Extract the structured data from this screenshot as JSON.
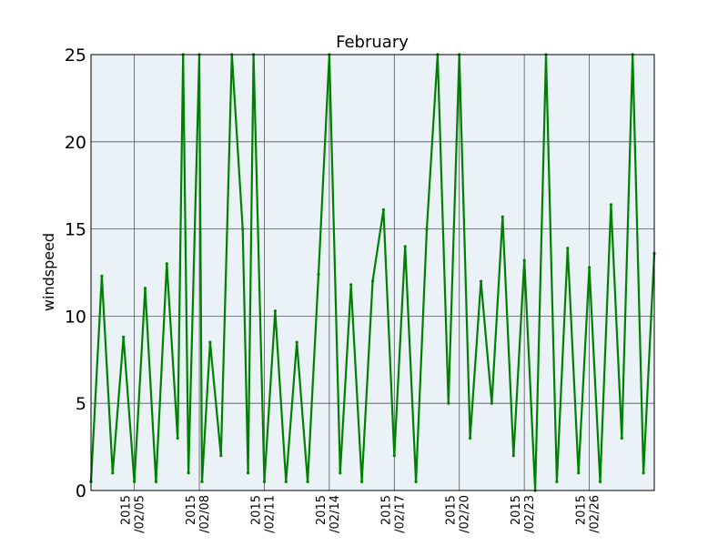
{
  "chart_data": {
    "type": "line",
    "title": "February",
    "xlabel": "",
    "ylabel": "windspeed",
    "ylim": [
      0,
      25
    ],
    "yticks": [
      0,
      5,
      10,
      15,
      20,
      25
    ],
    "xlim": [
      "2015-02-03",
      "2015-03-01"
    ],
    "xticks": [
      {
        "date": "2015-02-05",
        "line1": "2015",
        "line2": "/02/05"
      },
      {
        "date": "2015-02-08",
        "line1": "2015",
        "line2": "/02/08"
      },
      {
        "date": "2015-02-11",
        "line1": "2015",
        "line2": "/02/11"
      },
      {
        "date": "2015-02-14",
        "line1": "2015",
        "line2": "/02/14"
      },
      {
        "date": "2015-02-17",
        "line1": "2015",
        "line2": "/02/17"
      },
      {
        "date": "2015-02-20",
        "line1": "2015",
        "line2": "/02/20"
      },
      {
        "date": "2015-02-23",
        "line1": "2015",
        "line2": "/02/23"
      },
      {
        "date": "2015-02-26",
        "line1": "2015",
        "line2": "/02/26"
      }
    ],
    "grid": true,
    "colors": {
      "line": "#008000",
      "plot_bg": "#eaf2f8",
      "grid": "#555555"
    },
    "series": [
      {
        "x": [
          "2015-02-03",
          "2015-02-03 12:00",
          "2015-02-04",
          "2015-02-04 12:00",
          "2015-02-05",
          "2015-02-05 12:00",
          "2015-02-06",
          "2015-02-06 12:00",
          "2015-02-07",
          "2015-02-07 06:00",
          "2015-02-07 12:00",
          "2015-02-08",
          "2015-02-08 03:00",
          "2015-02-08 12:00",
          "2015-02-09",
          "2015-02-09 12:00",
          "2015-02-10",
          "2015-02-10 06:00",
          "2015-02-10 12:00",
          "2015-02-11",
          "2015-02-11 12:00",
          "2015-02-12",
          "2015-02-12 12:00",
          "2015-02-13",
          "2015-02-13 12:00",
          "2015-02-14",
          "2015-02-14 12:00",
          "2015-02-15",
          "2015-02-15 12:00",
          "2015-02-16",
          "2015-02-16 12:00",
          "2015-02-17",
          "2015-02-17 12:00",
          "2015-02-18",
          "2015-02-18 12:00",
          "2015-02-19",
          "2015-02-19 12:00",
          "2015-02-20",
          "2015-02-20 12:00",
          "2015-02-21",
          "2015-02-21 12:00",
          "2015-02-22",
          "2015-02-22 12:00",
          "2015-02-23",
          "2015-02-23 12:00",
          "2015-02-24",
          "2015-02-24 12:00",
          "2015-02-25",
          "2015-02-25 12:00",
          "2015-02-26",
          "2015-02-26 12:00",
          "2015-02-27",
          "2015-02-27 12:00",
          "2015-02-28",
          "2015-02-28 12:00",
          "2015-03-01"
        ],
        "values": [
          0.5,
          12.3,
          1,
          8.8,
          0.5,
          11.6,
          0.5,
          13,
          3,
          25,
          1,
          25,
          0.5,
          8.5,
          2,
          25,
          15,
          1,
          25,
          0.5,
          10.3,
          0.5,
          8.5,
          0.5,
          12.4,
          25,
          1,
          11.8,
          0.5,
          12,
          16.1,
          2,
          14,
          0.5,
          15,
          25,
          5,
          25,
          3,
          12,
          5,
          15.7,
          2,
          13.2,
          0,
          25,
          0.5,
          13.9,
          1,
          12.8,
          0.5,
          16.4,
          3,
          25,
          1,
          13.6
        ]
      }
    ]
  }
}
